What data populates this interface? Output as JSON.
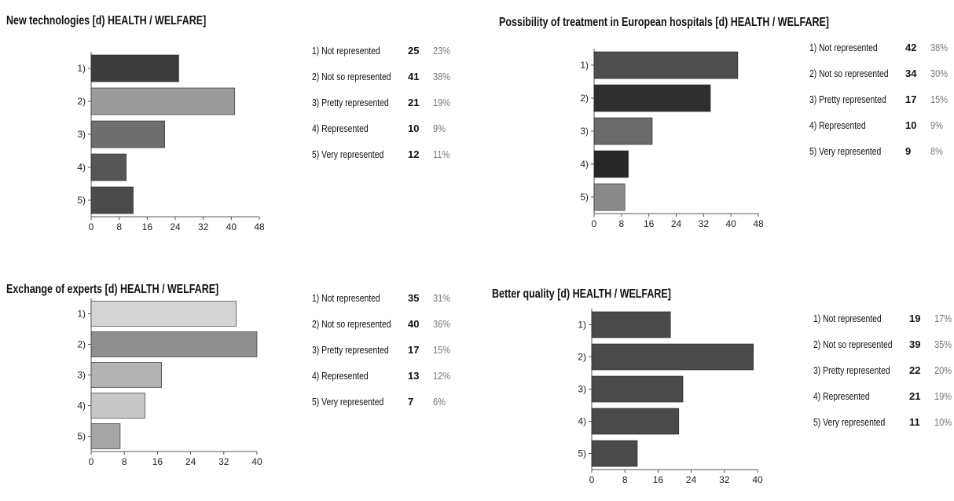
{
  "chart_data": [
    {
      "type": "bar",
      "title": "New technologies [d) HEALTH / WELFARE]",
      "categories": [
        "1)",
        "2)",
        "3)",
        "4)",
        "5)"
      ],
      "values": [
        25,
        41,
        21,
        10,
        12
      ],
      "xticks": [
        "0",
        "8",
        "16",
        "24",
        "32",
        "40",
        "48"
      ],
      "xlim": [
        0,
        48
      ],
      "colors": [
        "#3d3d3d",
        "#9a9a9a",
        "#6e6e6e",
        "#555555",
        "#4a4a4a"
      ],
      "legend": [
        {
          "label": "1) Not represented",
          "count": "25",
          "pct": "23%"
        },
        {
          "label": "2) Not so represented",
          "count": "41",
          "pct": "38%"
        },
        {
          "label": "3) Pretty represented",
          "count": "21",
          "pct": "19%"
        },
        {
          "label": "4) Represented",
          "count": "10",
          "pct": "9%"
        },
        {
          "label": "5) Very represented",
          "count": "12",
          "pct": "11%"
        }
      ]
    },
    {
      "type": "bar",
      "title": "Possibility of treatment in European hospitals [d) HEALTH / WELFARE]",
      "categories": [
        "1)",
        "2)",
        "3)",
        "4)",
        "5)"
      ],
      "values": [
        42,
        34,
        17,
        10,
        9
      ],
      "xticks": [
        "0",
        "8",
        "16",
        "24",
        "32",
        "40",
        "48"
      ],
      "xlim": [
        0,
        48
      ],
      "colors": [
        "#4f4f4f",
        "#2f2f2f",
        "#6a6a6a",
        "#262626",
        "#8a8a8a"
      ],
      "legend": [
        {
          "label": "1) Not represented",
          "count": "42",
          "pct": "38%"
        },
        {
          "label": "2) Not so represented",
          "count": "34",
          "pct": "30%"
        },
        {
          "label": "3) Pretty represented",
          "count": "17",
          "pct": "15%"
        },
        {
          "label": "4) Represented",
          "count": "10",
          "pct": "9%"
        },
        {
          "label": "5) Very represented",
          "count": "9",
          "pct": "8%"
        }
      ]
    },
    {
      "type": "bar",
      "title": "Exchange of experts [d) HEALTH / WELFARE]",
      "categories": [
        "1)",
        "2)",
        "3)",
        "4)",
        "5)"
      ],
      "values": [
        35,
        40,
        17,
        13,
        7
      ],
      "xticks": [
        "0",
        "8",
        "16",
        "24",
        "32",
        "40"
      ],
      "xlim": [
        0,
        40
      ],
      "colors": [
        "#d4d4d4",
        "#8f8f8f",
        "#b3b3b3",
        "#c8c8c8",
        "#a6a6a6"
      ],
      "legend": [
        {
          "label": "1) Not represented",
          "count": "35",
          "pct": "31%"
        },
        {
          "label": "2) Not so represented",
          "count": "40",
          "pct": "36%"
        },
        {
          "label": "3) Pretty represented",
          "count": "17",
          "pct": "15%"
        },
        {
          "label": "4) Represented",
          "count": "13",
          "pct": "12%"
        },
        {
          "label": "5) Very represented",
          "count": "7",
          "pct": "6%"
        }
      ]
    },
    {
      "type": "bar",
      "title": "Better quality [d) HEALTH / WELFARE]",
      "categories": [
        "1)",
        "2)",
        "3)",
        "4)",
        "5)"
      ],
      "values": [
        19,
        39,
        22,
        21,
        11
      ],
      "xticks": [
        "0",
        "8",
        "16",
        "24",
        "32",
        "40"
      ],
      "xlim": [
        0,
        40
      ],
      "colors": [
        "#4a4a4a",
        "#4a4a4a",
        "#4a4a4a",
        "#4a4a4a",
        "#4a4a4a"
      ],
      "legend": [
        {
          "label": "1) Not represented",
          "count": "19",
          "pct": "17%"
        },
        {
          "label": "2) Not so represented",
          "count": "39",
          "pct": "35%"
        },
        {
          "label": "3) Pretty represented",
          "count": "22",
          "pct": "20%"
        },
        {
          "label": "4) Represented",
          "count": "21",
          "pct": "19%"
        },
        {
          "label": "5) Very represented",
          "count": "11",
          "pct": "10%"
        }
      ]
    }
  ]
}
